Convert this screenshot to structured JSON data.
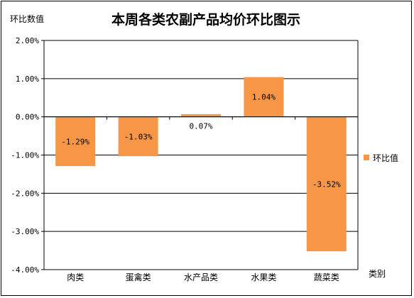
{
  "chart_data": {
    "type": "bar",
    "title": "本周各类农副产品均价环比图示",
    "ylabel": "环比数值",
    "xlabel": "类别",
    "categories": [
      "肉类",
      "蛋禽类",
      "水产品类",
      "水果类",
      "蔬菜类"
    ],
    "series": [
      {
        "name": "环比值",
        "values": [
          -1.29,
          -1.03,
          0.07,
          1.04,
          -3.52
        ],
        "labels": [
          "-1.29%",
          "-1.03%",
          "0.07%",
          "1.04%",
          "-3.52%"
        ],
        "color": "#F79646"
      }
    ],
    "ylim": [
      -4.0,
      2.0
    ],
    "yticks": [
      2.0,
      1.0,
      0.0,
      -1.0,
      -2.0,
      -3.0,
      -4.0
    ],
    "ytick_labels": [
      "2.00%",
      "1.00%",
      "0.00%",
      "-1.00%",
      "-2.00%",
      "-3.00%",
      "-4.00%"
    ],
    "grid": true,
    "legend_position": "right"
  }
}
